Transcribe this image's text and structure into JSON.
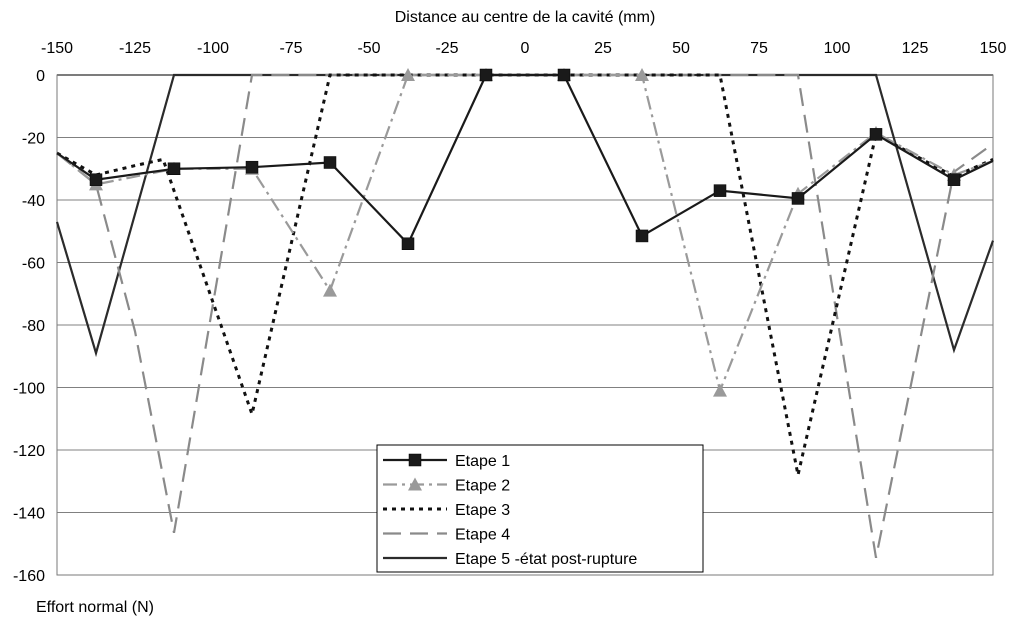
{
  "chart_data": {
    "type": "line",
    "xlabel": "Distance au centre de la cavité (mm)",
    "ylabel": "Effort normal (N)",
    "xlim": [
      -150,
      150
    ],
    "ylim": [
      -160,
      0
    ],
    "x_ticks": [
      -150,
      -125,
      -100,
      -75,
      -50,
      -25,
      0,
      25,
      50,
      75,
      100,
      125,
      150
    ],
    "y_ticks": [
      0,
      -20,
      -40,
      -60,
      -80,
      -100,
      -120,
      -140,
      -160
    ],
    "x_axis_position": "top",
    "grid": "horizontal",
    "legend_position": "bottom-center",
    "series": [
      {
        "name": "Etape 1",
        "color": "#1a1a1a",
        "dash": "solid",
        "marker": "square",
        "points": [
          [
            -150,
            -25
          ],
          [
            -137.5,
            -33.5
          ],
          [
            -112.5,
            -30
          ],
          [
            -87.5,
            -29.5
          ],
          [
            -62.5,
            -28
          ],
          [
            -37.5,
            -54
          ],
          [
            -12.5,
            0
          ],
          [
            12.5,
            0
          ],
          [
            37.5,
            -51.5
          ],
          [
            62.5,
            -37
          ],
          [
            87.5,
            -39.5
          ],
          [
            112.5,
            -19
          ],
          [
            137.5,
            -33.5
          ],
          [
            150,
            -27.5
          ]
        ]
      },
      {
        "name": "Etape 2",
        "color": "#9a9a9a",
        "dash": "dashdot",
        "marker": "triangle",
        "points": [
          [
            -150,
            -25
          ],
          [
            -137.5,
            -35
          ],
          [
            -112.5,
            -30
          ],
          [
            -87.5,
            -30
          ],
          [
            -62.5,
            -69
          ],
          [
            -37.5,
            0
          ],
          [
            -12.5,
            0
          ],
          [
            12.5,
            0
          ],
          [
            37.5,
            0
          ],
          [
            62.5,
            -101
          ],
          [
            87.5,
            -38
          ],
          [
            112.5,
            -18.5
          ],
          [
            137.5,
            -32
          ],
          [
            150,
            -27.5
          ]
        ]
      },
      {
        "name": "Etape 3",
        "color": "#111111",
        "dash": "dotted",
        "marker": "none",
        "points": [
          [
            -150,
            -25
          ],
          [
            -137.5,
            -32
          ],
          [
            -125,
            -29
          ],
          [
            -116,
            -27
          ],
          [
            -87.5,
            -108.5
          ],
          [
            -62.5,
            0
          ],
          [
            -37.5,
            0
          ],
          [
            -12.5,
            0
          ],
          [
            12.5,
            0
          ],
          [
            37.5,
            0
          ],
          [
            62.5,
            0
          ],
          [
            87.5,
            -128
          ],
          [
            112.5,
            -19
          ],
          [
            137.5,
            -32.5
          ],
          [
            150,
            -27
          ]
        ]
      },
      {
        "name": "Etape 4",
        "color": "#8a8a8a",
        "dash": "dashed",
        "marker": "none",
        "points": [
          [
            -150,
            -25
          ],
          [
            -137.5,
            -35
          ],
          [
            -125,
            -82
          ],
          [
            -112.5,
            -146.5
          ],
          [
            -87.5,
            0
          ],
          [
            87.5,
            0
          ],
          [
            112.5,
            -154.5
          ],
          [
            137.5,
            -31
          ],
          [
            150,
            -22
          ]
        ]
      },
      {
        "name": "Etape 5 -état post-rupture",
        "color": "#2b2b2b",
        "dash": "solid",
        "marker": "none",
        "points": [
          [
            -150,
            -47
          ],
          [
            -137.5,
            -89
          ],
          [
            -112.5,
            0
          ],
          [
            112.5,
            0
          ],
          [
            137.5,
            -88
          ],
          [
            150,
            -53
          ]
        ]
      }
    ]
  }
}
